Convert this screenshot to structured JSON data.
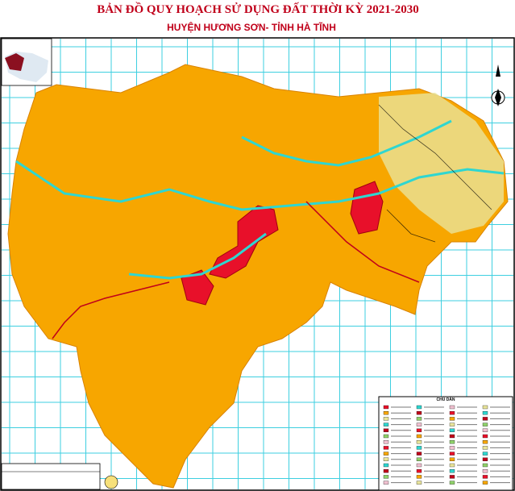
{
  "header": {
    "title": "BẢN ĐỒ QUY HOẠCH SỬ DỤNG ĐẤT THỜI KỲ 2021-2030",
    "subtitle": "HUYỆN HƯƠNG SƠN- TỈNH HÀ TĨNH"
  },
  "legend": {
    "title": "CHÚ DẪN"
  }
}
